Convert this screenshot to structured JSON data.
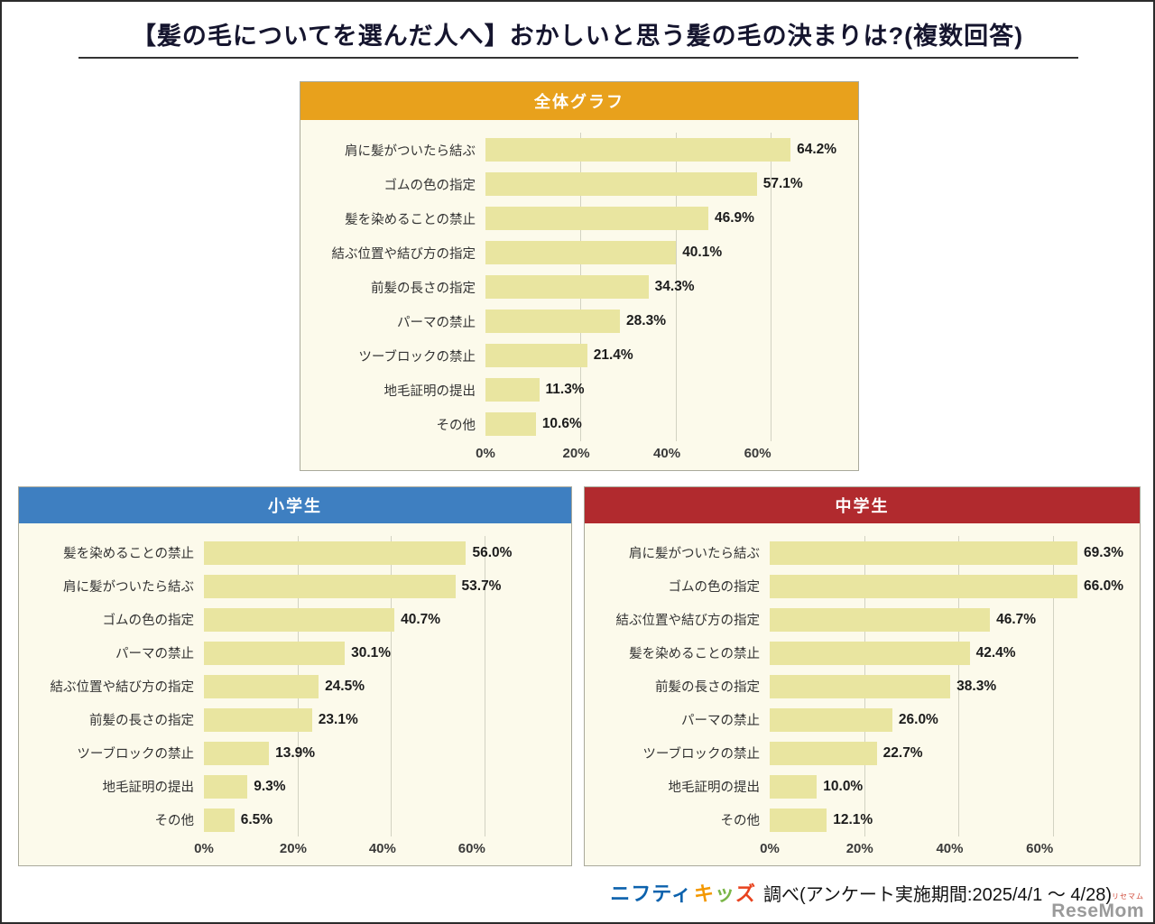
{
  "page": {
    "title": "【髪の毛についてを選んだ人へ】おかしいと思う髪の毛の決まりは?(複数回答)"
  },
  "footer": {
    "brand_nifty": "ニフティ",
    "kids_char_1": "キ",
    "kids_char_2": "ッ",
    "kids_char_3": "ズ",
    "survey_note": "調べ(アンケート実施期間:2025/4/1 〜 4/28)",
    "logo_main": "ReseMom",
    "logo_small": "リセマム"
  },
  "chart_data": [
    {
      "type": "bar",
      "orientation": "horizontal",
      "title": "全体グラフ",
      "header_color": "#e8a11c",
      "bar_color": "#e9e5a0",
      "categories": [
        "肩に髪がついたら結ぶ",
        "ゴムの色の指定",
        "髪を染めることの禁止",
        "結ぶ位置や結び方の指定",
        "前髪の長さの指定",
        "パーマの禁止",
        "ツーブロックの禁止",
        "地毛証明の提出",
        "その他"
      ],
      "values": [
        64.2,
        57.1,
        46.9,
        40.1,
        34.3,
        28.3,
        21.4,
        11.3,
        10.6
      ],
      "value_suffix": "%",
      "xticks": [
        0,
        20,
        40,
        60
      ],
      "xlim": [
        0,
        75
      ],
      "grid": true,
      "legend": "none"
    },
    {
      "type": "bar",
      "orientation": "horizontal",
      "title": "小学生",
      "header_color": "#3e7fc1",
      "bar_color": "#e9e5a0",
      "categories": [
        "髪を染めることの禁止",
        "肩に髪がついたら結ぶ",
        "ゴムの色の指定",
        "パーマの禁止",
        "結ぶ位置や結び方の指定",
        "前髪の長さの指定",
        "ツーブロックの禁止",
        "地毛証明の提出",
        "その他"
      ],
      "values": [
        56.0,
        53.7,
        40.7,
        30.1,
        24.5,
        23.1,
        13.9,
        9.3,
        6.5
      ],
      "value_suffix": "%",
      "xticks": [
        0,
        20,
        40,
        60
      ],
      "xlim": [
        0,
        75
      ],
      "grid": true,
      "legend": "none"
    },
    {
      "type": "bar",
      "orientation": "horizontal",
      "title": "中学生",
      "header_color": "#b12a2e",
      "bar_color": "#e9e5a0",
      "categories": [
        "肩に髪がついたら結ぶ",
        "ゴムの色の指定",
        "結ぶ位置や結び方の指定",
        "髪を染めることの禁止",
        "前髪の長さの指定",
        "パーマの禁止",
        "ツーブロックの禁止",
        "地毛証明の提出",
        "その他"
      ],
      "values": [
        69.3,
        66.0,
        46.7,
        42.4,
        38.3,
        26.0,
        22.7,
        10.0,
        12.1
      ],
      "value_suffix": "%",
      "xticks": [
        0,
        20,
        40,
        60
      ],
      "xlim": [
        0,
        75
      ],
      "grid": true,
      "legend": "none"
    }
  ]
}
